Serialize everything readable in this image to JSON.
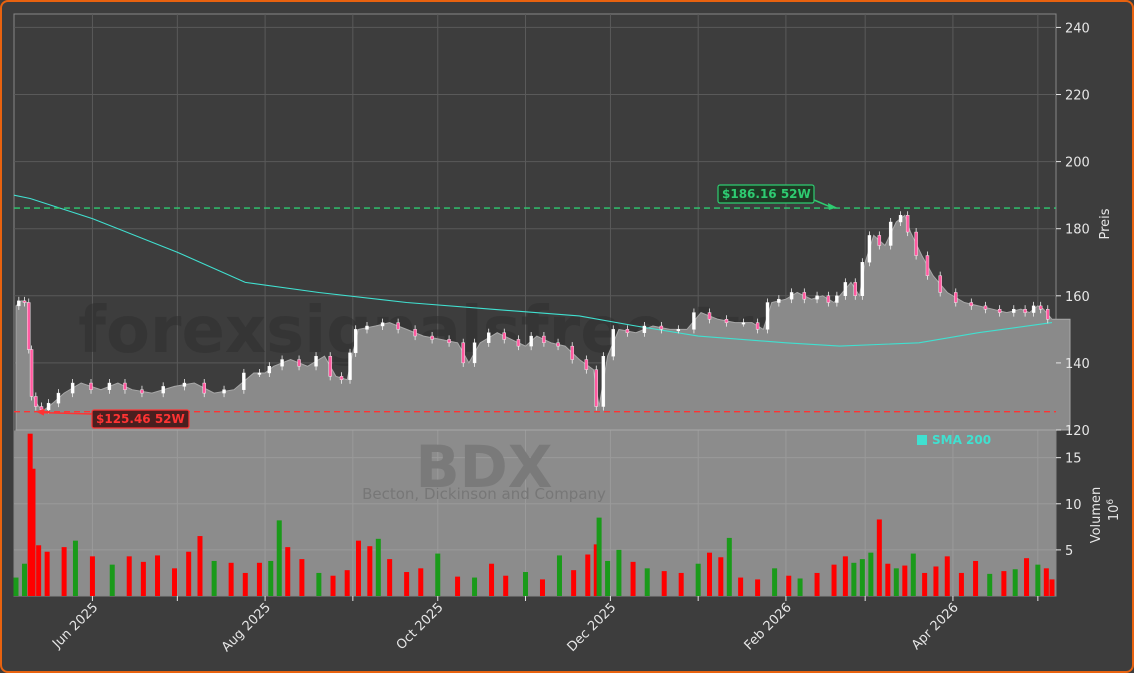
{
  "chart_data": {
    "type": "candlestick",
    "ticker": "BDX",
    "company": "Becton, Dickinson and Company",
    "watermark": "forexsignalsfree.trade",
    "ylabel_price": "Preis",
    "ylabel_volume": "Volumen",
    "volume_unit": "10^6",
    "volume_unit_base": "10",
    "volume_unit_exp": "6",
    "legend": {
      "label": "SMA 200",
      "color": "#40e0d0",
      "placement": "top-right of volume pane"
    },
    "price_axis": {
      "min": 120,
      "max": 244,
      "ticks": [
        "120",
        "140",
        "160",
        "180",
        "200",
        "220",
        "240"
      ]
    },
    "volume_axis": {
      "min": 0,
      "max": 18,
      "ticks": [
        "5",
        "10",
        "15"
      ]
    },
    "x_axis": {
      "start": "2025-05-05",
      "end": "2026-05-06",
      "ticks": [
        {
          "date": "2025-05-01",
          "label": ""
        },
        {
          "date": "2025-06-01",
          "label": "Jun 2025"
        },
        {
          "date": "2025-07-01",
          "label": ""
        },
        {
          "date": "2025-08-01",
          "label": "Aug 2025"
        },
        {
          "date": "2025-09-01",
          "label": ""
        },
        {
          "date": "2025-10-01",
          "label": "Oct 2025"
        },
        {
          "date": "2025-11-01",
          "label": ""
        },
        {
          "date": "2025-12-01",
          "label": "Dec 2025"
        },
        {
          "date": "2026-01-01",
          "label": ""
        },
        {
          "date": "2026-02-01",
          "label": "Feb 2026"
        },
        {
          "date": "2026-03-01",
          "label": ""
        },
        {
          "date": "2026-04-01",
          "label": "Apr 2026"
        },
        {
          "date": "2026-05-01",
          "label": ""
        }
      ]
    },
    "grid": true,
    "annotations": {
      "high": {
        "label": "$186.16 52W",
        "value": 186.16,
        "date": "2026-02-19",
        "color": "#2ecc71"
      },
      "low": {
        "label": "$125.46 52W",
        "value": 125.46,
        "date": "2025-05-12",
        "color": "#ff3333"
      }
    },
    "colors": {
      "up": "#1a9a1a",
      "down": "#ff0000",
      "area": "#8a8a8a",
      "sma": "#40e0d0"
    },
    "close_series": [
      [
        "2025-05-05",
        157
      ],
      [
        "2025-05-07",
        158.5
      ],
      [
        "2025-05-09",
        158
      ],
      [
        "2025-05-10",
        144
      ],
      [
        "2025-05-11",
        130
      ],
      [
        "2025-05-13",
        127
      ],
      [
        "2025-05-15",
        126
      ],
      [
        "2025-05-18",
        128
      ],
      [
        "2025-05-22",
        131
      ],
      [
        "2025-05-28",
        134
      ],
      [
        "2025-06-04",
        132
      ],
      [
        "2025-06-10",
        134
      ],
      [
        "2025-06-15",
        132
      ],
      [
        "2025-06-22",
        131
      ],
      [
        "2025-06-30",
        133
      ],
      [
        "2025-07-07",
        134
      ],
      [
        "2025-07-14",
        131
      ],
      [
        "2025-07-21",
        132
      ],
      [
        "2025-07-28",
        137
      ],
      [
        "2025-08-01",
        137
      ],
      [
        "2025-08-04",
        139
      ],
      [
        "2025-08-10",
        141
      ],
      [
        "2025-08-16",
        139
      ],
      [
        "2025-08-22",
        142
      ],
      [
        "2025-08-26",
        136
      ],
      [
        "2025-08-30",
        135
      ],
      [
        "2025-09-01",
        143
      ],
      [
        "2025-09-03",
        150
      ],
      [
        "2025-09-09",
        151
      ],
      [
        "2025-09-14",
        152
      ],
      [
        "2025-09-20",
        150
      ],
      [
        "2025-09-26",
        148
      ],
      [
        "2025-10-02",
        147
      ],
      [
        "2025-10-08",
        146
      ],
      [
        "2025-10-12",
        140
      ],
      [
        "2025-10-16",
        146
      ],
      [
        "2025-10-22",
        149
      ],
      [
        "2025-10-27",
        147
      ],
      [
        "2025-11-01",
        145
      ],
      [
        "2025-11-05",
        148
      ],
      [
        "2025-11-10",
        146
      ],
      [
        "2025-11-15",
        145
      ],
      [
        "2025-11-20",
        141
      ],
      [
        "2025-11-25",
        138
      ],
      [
        "2025-11-27",
        127
      ],
      [
        "2025-11-30",
        142
      ],
      [
        "2025-12-04",
        150
      ],
      [
        "2025-12-10",
        149
      ],
      [
        "2025-12-16",
        151
      ],
      [
        "2025-12-22",
        150
      ],
      [
        "2025-12-28",
        150
      ],
      [
        "2026-01-02",
        155
      ],
      [
        "2026-01-08",
        153
      ],
      [
        "2026-01-14",
        152
      ],
      [
        "2026-01-20",
        152
      ],
      [
        "2026-01-24",
        150
      ],
      [
        "2026-01-27",
        158
      ],
      [
        "2026-02-01",
        159
      ],
      [
        "2026-02-05",
        161
      ],
      [
        "2026-02-10",
        159
      ],
      [
        "2026-02-14",
        160
      ],
      [
        "2026-02-18",
        158
      ],
      [
        "2026-02-20",
        160
      ],
      [
        "2026-02-24",
        164
      ],
      [
        "2026-02-27",
        160
      ],
      [
        "2026-03-01",
        170
      ],
      [
        "2026-03-04",
        178
      ],
      [
        "2026-03-08",
        175
      ],
      [
        "2026-03-12",
        182
      ],
      [
        "2026-03-15",
        184
      ],
      [
        "2026-03-17",
        179
      ],
      [
        "2026-03-21",
        172
      ],
      [
        "2026-03-25",
        166
      ],
      [
        "2026-03-30",
        161
      ],
      [
        "2026-04-05",
        158
      ],
      [
        "2026-04-10",
        157
      ],
      [
        "2026-04-15",
        156
      ],
      [
        "2026-04-20",
        155
      ],
      [
        "2026-04-25",
        156
      ],
      [
        "2026-04-28",
        155
      ],
      [
        "2026-05-01",
        157
      ],
      [
        "2026-05-03",
        156
      ],
      [
        "2026-05-06",
        153
      ]
    ],
    "sma_series": [
      [
        "2025-05-01",
        190
      ],
      [
        "2025-05-10",
        189
      ],
      [
        "2025-06-01",
        183
      ],
      [
        "2025-07-01",
        173
      ],
      [
        "2025-07-25",
        164
      ],
      [
        "2025-08-20",
        161
      ],
      [
        "2025-09-20",
        158
      ],
      [
        "2025-10-20",
        156
      ],
      [
        "2025-11-20",
        154
      ],
      [
        "2025-12-10",
        151
      ],
      [
        "2026-01-01",
        148
      ],
      [
        "2026-02-01",
        146
      ],
      [
        "2026-02-20",
        145
      ],
      [
        "2026-03-20",
        146
      ],
      [
        "2026-04-10",
        149
      ],
      [
        "2026-05-06",
        152
      ]
    ],
    "volume_series": [
      [
        "2025-05-05",
        2.0,
        "up"
      ],
      [
        "2025-05-08",
        3.5,
        "up"
      ],
      [
        "2025-05-10",
        17.6,
        "down"
      ],
      [
        "2025-05-11",
        13.8,
        "down"
      ],
      [
        "2025-05-13",
        5.5,
        "down"
      ],
      [
        "2025-05-16",
        4.8,
        "down"
      ],
      [
        "2025-05-22",
        5.3,
        "down"
      ],
      [
        "2025-05-26",
        6.0,
        "up"
      ],
      [
        "2025-06-01",
        4.3,
        "down"
      ],
      [
        "2025-06-08",
        3.4,
        "up"
      ],
      [
        "2025-06-14",
        4.3,
        "down"
      ],
      [
        "2025-06-19",
        3.7,
        "down"
      ],
      [
        "2025-06-24",
        4.4,
        "down"
      ],
      [
        "2025-06-30",
        3.0,
        "down"
      ],
      [
        "2025-07-05",
        4.8,
        "down"
      ],
      [
        "2025-07-09",
        6.5,
        "down"
      ],
      [
        "2025-07-14",
        3.8,
        "up"
      ],
      [
        "2025-07-20",
        3.6,
        "down"
      ],
      [
        "2025-07-25",
        2.5,
        "down"
      ],
      [
        "2025-07-30",
        3.6,
        "down"
      ],
      [
        "2025-08-03",
        3.8,
        "up"
      ],
      [
        "2025-08-06",
        8.2,
        "up"
      ],
      [
        "2025-08-09",
        5.3,
        "down"
      ],
      [
        "2025-08-14",
        4.0,
        "down"
      ],
      [
        "2025-08-20",
        2.5,
        "up"
      ],
      [
        "2025-08-25",
        2.2,
        "down"
      ],
      [
        "2025-08-30",
        2.8,
        "down"
      ],
      [
        "2025-09-03",
        6.0,
        "down"
      ],
      [
        "2025-09-07",
        5.4,
        "down"
      ],
      [
        "2025-09-10",
        6.2,
        "up"
      ],
      [
        "2025-09-14",
        4.0,
        "down"
      ],
      [
        "2025-09-20",
        2.6,
        "down"
      ],
      [
        "2025-09-25",
        3.0,
        "down"
      ],
      [
        "2025-10-01",
        4.6,
        "up"
      ],
      [
        "2025-10-08",
        2.1,
        "down"
      ],
      [
        "2025-10-14",
        2.0,
        "up"
      ],
      [
        "2025-10-20",
        3.5,
        "down"
      ],
      [
        "2025-10-25",
        2.2,
        "down"
      ],
      [
        "2025-11-01",
        2.6,
        "up"
      ],
      [
        "2025-11-07",
        1.8,
        "down"
      ],
      [
        "2025-11-13",
        4.4,
        "up"
      ],
      [
        "2025-11-18",
        2.8,
        "down"
      ],
      [
        "2025-11-23",
        4.5,
        "down"
      ],
      [
        "2025-11-26",
        5.6,
        "down"
      ],
      [
        "2025-11-27",
        8.5,
        "up"
      ],
      [
        "2025-11-30",
        3.8,
        "up"
      ],
      [
        "2025-12-04",
        5.0,
        "up"
      ],
      [
        "2025-12-09",
        3.7,
        "down"
      ],
      [
        "2025-12-14",
        3.0,
        "up"
      ],
      [
        "2025-12-20",
        2.7,
        "down"
      ],
      [
        "2025-12-26",
        2.5,
        "down"
      ],
      [
        "2026-01-01",
        3.5,
        "up"
      ],
      [
        "2026-01-05",
        4.7,
        "down"
      ],
      [
        "2026-01-09",
        4.2,
        "down"
      ],
      [
        "2026-01-12",
        6.3,
        "up"
      ],
      [
        "2026-01-16",
        2.0,
        "down"
      ],
      [
        "2026-01-22",
        1.8,
        "down"
      ],
      [
        "2026-01-28",
        3.0,
        "up"
      ],
      [
        "2026-02-02",
        2.2,
        "down"
      ],
      [
        "2026-02-06",
        1.9,
        "up"
      ],
      [
        "2026-02-12",
        2.5,
        "down"
      ],
      [
        "2026-02-18",
        3.4,
        "down"
      ],
      [
        "2026-02-22",
        4.3,
        "down"
      ],
      [
        "2026-02-25",
        3.6,
        "up"
      ],
      [
        "2026-02-28",
        4.0,
        "up"
      ],
      [
        "2026-03-03",
        4.7,
        "up"
      ],
      [
        "2026-03-06",
        8.3,
        "down"
      ],
      [
        "2026-03-09",
        3.5,
        "down"
      ],
      [
        "2026-03-12",
        3.0,
        "up"
      ],
      [
        "2026-03-15",
        3.3,
        "down"
      ],
      [
        "2026-03-18",
        4.6,
        "up"
      ],
      [
        "2026-03-22",
        2.5,
        "down"
      ],
      [
        "2026-03-26",
        3.2,
        "down"
      ],
      [
        "2026-03-30",
        4.3,
        "down"
      ],
      [
        "2026-04-04",
        2.5,
        "down"
      ],
      [
        "2026-04-09",
        3.8,
        "down"
      ],
      [
        "2026-04-14",
        2.4,
        "up"
      ],
      [
        "2026-04-19",
        2.7,
        "down"
      ],
      [
        "2026-04-23",
        2.9,
        "up"
      ],
      [
        "2026-04-27",
        4.1,
        "down"
      ],
      [
        "2026-05-01",
        3.4,
        "up"
      ],
      [
        "2026-05-04",
        3.0,
        "down"
      ],
      [
        "2026-05-06",
        1.8,
        "down"
      ]
    ]
  }
}
